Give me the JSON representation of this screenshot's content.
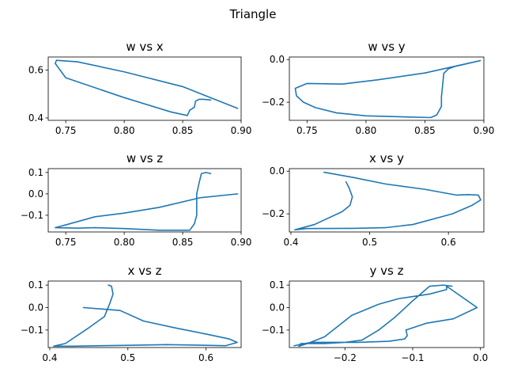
{
  "figure": {
    "title": "Triangle"
  },
  "chart_data": [
    {
      "type": "line",
      "title": "w vs x",
      "xlabel": "",
      "ylabel": "",
      "xlim": [
        0.735,
        0.9
      ],
      "ylim": [
        0.39,
        0.655
      ],
      "xticks": [
        0.75,
        0.8,
        0.85,
        0.9
      ],
      "xtick_labels": [
        "0.75",
        "0.80",
        "0.85",
        "0.90"
      ],
      "yticks": [
        0.4,
        0.6
      ],
      "ytick_labels": [
        "0.4",
        "0.6"
      ],
      "grid": false,
      "series": [
        {
          "points": [
            [
              0.874,
              0.475
            ],
            [
              0.868,
              0.478
            ],
            [
              0.864,
              0.478
            ],
            [
              0.861,
              0.47
            ],
            [
              0.86,
              0.445
            ],
            [
              0.856,
              0.432
            ],
            [
              0.854,
              0.41
            ],
            [
              0.84,
              0.425
            ],
            [
              0.8,
              0.485
            ],
            [
              0.75,
              0.568
            ],
            [
              0.741,
              0.628
            ],
            [
              0.742,
              0.641
            ],
            [
              0.76,
              0.635
            ],
            [
              0.8,
              0.593
            ],
            [
              0.85,
              0.531
            ],
            [
              0.897,
              0.44
            ]
          ]
        }
      ]
    },
    {
      "type": "line",
      "title": "w vs y",
      "xlabel": "",
      "ylabel": "",
      "xlim": [
        0.735,
        0.9
      ],
      "ylim": [
        -0.285,
        0.012
      ],
      "xticks": [
        0.75,
        0.8,
        0.85,
        0.9
      ],
      "xtick_labels": [
        "0.75",
        "0.80",
        "0.85",
        "0.90"
      ],
      "yticks": [
        -0.2,
        0.0
      ],
      "ytick_labels": [
        "−0.2",
        "0.0"
      ],
      "grid": false,
      "series": [
        {
          "points": [
            [
              0.897,
              -0.005
            ],
            [
              0.875,
              -0.033
            ],
            [
              0.87,
              -0.043
            ],
            [
              0.866,
              -0.065
            ],
            [
              0.865,
              -0.12
            ],
            [
              0.864,
              -0.175
            ],
            [
              0.864,
              -0.22
            ],
            [
              0.862,
              -0.24
            ],
            [
              0.86,
              -0.26
            ],
            [
              0.855,
              -0.272
            ],
            [
              0.8,
              -0.264
            ],
            [
              0.775,
              -0.25
            ],
            [
              0.757,
              -0.225
            ],
            [
              0.747,
              -0.2
            ],
            [
              0.741,
              -0.17
            ],
            [
              0.74,
              -0.135
            ],
            [
              0.75,
              -0.112
            ],
            [
              0.78,
              -0.115
            ],
            [
              0.81,
              -0.095
            ],
            [
              0.85,
              -0.063
            ],
            [
              0.897,
              -0.005
            ]
          ]
        }
      ]
    },
    {
      "type": "line",
      "title": "w vs z",
      "xlabel": "",
      "ylabel": "",
      "xlim": [
        0.735,
        0.9
      ],
      "ylim": [
        -0.178,
        0.118
      ],
      "xticks": [
        0.75,
        0.8,
        0.85,
        0.9
      ],
      "xtick_labels": [
        "0.75",
        "0.80",
        "0.85",
        "0.90"
      ],
      "yticks": [
        -0.1,
        0.0,
        0.1
      ],
      "ytick_labels": [
        "−0.1",
        "0.0",
        "0.1"
      ],
      "grid": false,
      "series": [
        {
          "points": [
            [
              0.874,
              0.095
            ],
            [
              0.87,
              0.1
            ],
            [
              0.866,
              0.095
            ],
            [
              0.864,
              0.05
            ],
            [
              0.862,
              0.0
            ],
            [
              0.862,
              -0.05
            ],
            [
              0.862,
              -0.1
            ],
            [
              0.86,
              -0.14
            ],
            [
              0.856,
              -0.17
            ],
            [
              0.83,
              -0.17
            ],
            [
              0.8,
              -0.162
            ],
            [
              0.775,
              -0.158
            ],
            [
              0.76,
              -0.16
            ],
            [
              0.741,
              -0.158
            ],
            [
              0.75,
              -0.145
            ],
            [
              0.775,
              -0.107
            ],
            [
              0.8,
              -0.09
            ],
            [
              0.83,
              -0.063
            ],
            [
              0.865,
              -0.018
            ],
            [
              0.897,
              0.0
            ]
          ]
        }
      ]
    },
    {
      "type": "line",
      "title": "x vs y",
      "xlabel": "",
      "ylabel": "",
      "xlim": [
        0.398,
        0.645
      ],
      "ylim": [
        -0.285,
        0.012
      ],
      "xticks": [
        0.4,
        0.5,
        0.6
      ],
      "xtick_labels": [
        "0.4",
        "0.5",
        "0.6"
      ],
      "yticks": [
        -0.2,
        0.0
      ],
      "ytick_labels": [
        "−0.2",
        "0.0"
      ],
      "grid": false,
      "series": [
        {
          "points": [
            [
              0.442,
              -0.005
            ],
            [
              0.48,
              -0.03
            ],
            [
              0.52,
              -0.06
            ],
            [
              0.57,
              -0.085
            ],
            [
              0.61,
              -0.112
            ],
            [
              0.625,
              -0.11
            ],
            [
              0.638,
              -0.112
            ],
            [
              0.641,
              -0.135
            ],
            [
              0.63,
              -0.16
            ],
            [
              0.605,
              -0.2
            ],
            [
              0.555,
              -0.25
            ],
            [
              0.52,
              -0.265
            ],
            [
              0.48,
              -0.268
            ],
            [
              0.42,
              -0.269
            ],
            [
              0.405,
              -0.275
            ],
            [
              0.43,
              -0.25
            ],
            [
              0.465,
              -0.19
            ],
            [
              0.475,
              -0.16
            ],
            [
              0.478,
              -0.12
            ],
            [
              0.474,
              -0.08
            ],
            [
              0.47,
              -0.05
            ]
          ]
        }
      ]
    },
    {
      "type": "line",
      "title": "x vs z",
      "xlabel": "",
      "ylabel": "",
      "xlim": [
        0.398,
        0.645
      ],
      "ylim": [
        -0.178,
        0.118
      ],
      "xticks": [
        0.4,
        0.5,
        0.6
      ],
      "xtick_labels": [
        "0.4",
        "0.5",
        "0.6"
      ],
      "yticks": [
        -0.1,
        0.0,
        0.1
      ],
      "ytick_labels": [
        "−0.1",
        "0.0",
        "0.1"
      ],
      "grid": false,
      "series": [
        {
          "points": [
            [
              0.475,
              0.1
            ],
            [
              0.479,
              0.095
            ],
            [
              0.481,
              0.06
            ],
            [
              0.477,
              0.02
            ],
            [
              0.47,
              -0.04
            ],
            [
              0.45,
              -0.09
            ],
            [
              0.42,
              -0.16
            ],
            [
              0.405,
              -0.172
            ],
            [
              0.43,
              -0.172
            ],
            [
              0.5,
              -0.168
            ],
            [
              0.55,
              -0.165
            ],
            [
              0.6,
              -0.168
            ],
            [
              0.625,
              -0.17
            ],
            [
              0.64,
              -0.155
            ],
            [
              0.63,
              -0.14
            ],
            [
              0.6,
              -0.118
            ],
            [
              0.56,
              -0.09
            ],
            [
              0.52,
              -0.06
            ],
            [
              0.49,
              -0.013
            ],
            [
              0.443,
              0.0
            ]
          ]
        }
      ]
    },
    {
      "type": "line",
      "title": "y vs z",
      "xlabel": "",
      "ylabel": "",
      "xlim": [
        -0.282,
        0.005
      ],
      "ylim": [
        -0.178,
        0.118
      ],
      "xticks": [
        -0.2,
        -0.1,
        0.0
      ],
      "xtick_labels": [
        "−0.2",
        "−0.1",
        "0.0"
      ],
      "yticks": [
        -0.1,
        0.0,
        0.1
      ],
      "ytick_labels": [
        "−0.1",
        "0.0",
        "0.1"
      ],
      "grid": false,
      "series": [
        {
          "points": [
            [
              -0.042,
              0.095
            ],
            [
              -0.055,
              0.1
            ],
            [
              -0.075,
              0.095
            ],
            [
              -0.1,
              0.03
            ],
            [
              -0.125,
              -0.04
            ],
            [
              -0.15,
              -0.1
            ],
            [
              -0.175,
              -0.145
            ],
            [
              -0.2,
              -0.155
            ],
            [
              -0.23,
              -0.16
            ],
            [
              -0.265,
              -0.16
            ],
            [
              -0.268,
              -0.172
            ],
            [
              -0.255,
              -0.16
            ],
            [
              -0.23,
              -0.13
            ],
            [
              -0.19,
              -0.035
            ],
            [
              -0.15,
              0.015
            ],
            [
              -0.12,
              0.04
            ],
            [
              -0.075,
              0.06
            ],
            [
              -0.05,
              0.08
            ],
            [
              -0.05,
              0.095
            ],
            [
              -0.005,
              0.0
            ],
            [
              -0.04,
              -0.05
            ],
            [
              -0.08,
              -0.07
            ],
            [
              -0.11,
              -0.1
            ],
            [
              -0.108,
              -0.125
            ],
            [
              -0.112,
              -0.14
            ],
            [
              -0.135,
              -0.15
            ],
            [
              -0.18,
              -0.155
            ],
            [
              -0.25,
              -0.155
            ],
            [
              -0.275,
              -0.17
            ]
          ]
        }
      ]
    }
  ]
}
